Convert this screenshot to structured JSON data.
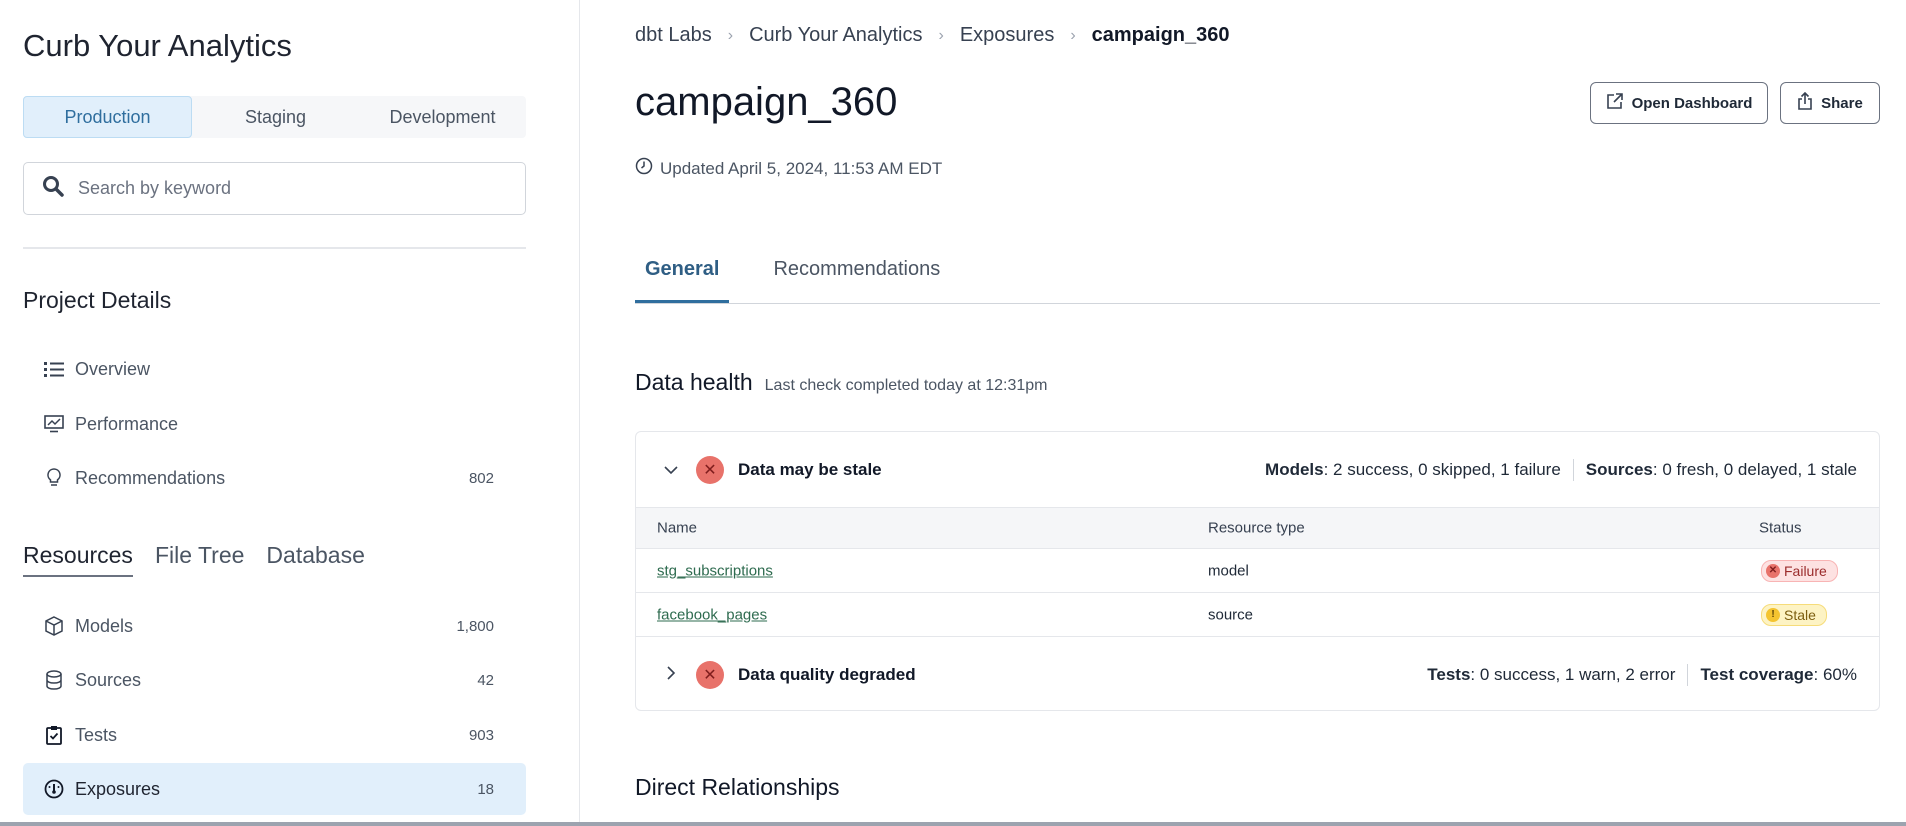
{
  "sidebar": {
    "title": "Curb Your Analytics",
    "environments": [
      "Production",
      "Staging",
      "Development"
    ],
    "active_environment": "Production",
    "search": {
      "placeholder": "Search by keyword",
      "value": ""
    },
    "project_details": {
      "title": "Project Details",
      "items": [
        {
          "label": "Overview",
          "icon": "list-icon",
          "count": ""
        },
        {
          "label": "Performance",
          "icon": "chart-monitor-icon",
          "count": ""
        },
        {
          "label": "Recommendations",
          "icon": "lightbulb-icon",
          "count": "802"
        }
      ]
    },
    "resource_tabs": [
      "Resources",
      "File Tree",
      "Database"
    ],
    "active_resource_tab": "Resources",
    "resources": [
      {
        "label": "Models",
        "icon": "cube-icon",
        "count": "1,800"
      },
      {
        "label": "Sources",
        "icon": "database-icon",
        "count": "42"
      },
      {
        "label": "Tests",
        "icon": "clipboard-check-icon",
        "count": "903"
      },
      {
        "label": "Exposures",
        "icon": "gauge-icon",
        "count": "18",
        "active": true
      }
    ]
  },
  "breadcrumb": [
    "dbt Labs",
    "Curb Your Analytics",
    "Exposures",
    "campaign_360"
  ],
  "header": {
    "title": "campaign_360",
    "updated": "Updated April 5, 2024, 11:53 AM EDT",
    "open_dashboard_label": "Open Dashboard",
    "share_label": "Share"
  },
  "tabs": [
    "General",
    "Recommendations"
  ],
  "active_tab": "General",
  "data_health": {
    "title": "Data health",
    "subtitle": "Last check completed today at 12:31pm",
    "stale": {
      "label": "Data may be stale",
      "models_key": "Models",
      "models_val": ": 2 success, 0 skipped, 1 failure",
      "sources_key": "Sources",
      "sources_val": ": 0 fresh, 0 delayed, 1 stale",
      "columns": [
        "Name",
        "Resource type",
        "Status"
      ],
      "rows": [
        {
          "name": "stg_subscriptions",
          "type": "model",
          "status": "Failure"
        },
        {
          "name": "facebook_pages",
          "type": "source",
          "status": "Stale"
        }
      ]
    },
    "quality": {
      "label": "Data quality degraded",
      "tests_key": "Tests",
      "tests_val": ": 0 success, 1 warn, 2 error",
      "coverage_key": "Test coverage",
      "coverage_val": ": 60%"
    }
  },
  "direct_relationships": "Direct Relationships",
  "colors": {
    "accent": "#2f6e9e",
    "active_bg": "#e1effb",
    "failure": "#e8726a",
    "stale": "#f4c430",
    "link": "#2e6b4f"
  }
}
